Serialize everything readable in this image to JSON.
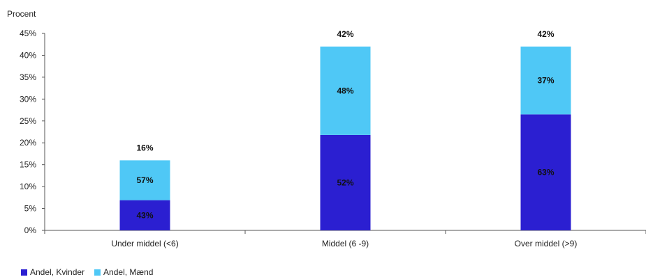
{
  "chart_data": {
    "type": "bar",
    "stacked": true,
    "y_unit_label": "Procent",
    "ylim": [
      0,
      45
    ],
    "y_ticks": [
      "0%",
      "5%",
      "10%",
      "15%",
      "20%",
      "25%",
      "30%",
      "35%",
      "40%",
      "45%"
    ],
    "y_tick_values": [
      0,
      5,
      10,
      15,
      20,
      25,
      30,
      35,
      40,
      45
    ],
    "categories": [
      "Under middel (<6)",
      "Middel (6 -9)",
      "Over middel (>9)"
    ],
    "totals": [
      16,
      42,
      42
    ],
    "total_labels": [
      "16%",
      "42%",
      "42%"
    ],
    "series": [
      {
        "name": "Andel, Kvinder",
        "color": "#2b1fd1",
        "values": [
          6.9,
          21.8,
          26.5
        ],
        "labels": [
          "43%",
          "52%",
          "63%"
        ]
      },
      {
        "name": "Andel, Mænd",
        "color": "#4fc8f6",
        "values": [
          9.1,
          20.2,
          15.5
        ],
        "labels": [
          "57%",
          "48%",
          "37%"
        ]
      }
    ],
    "grid": false,
    "legend_position": "bottom-left"
  }
}
